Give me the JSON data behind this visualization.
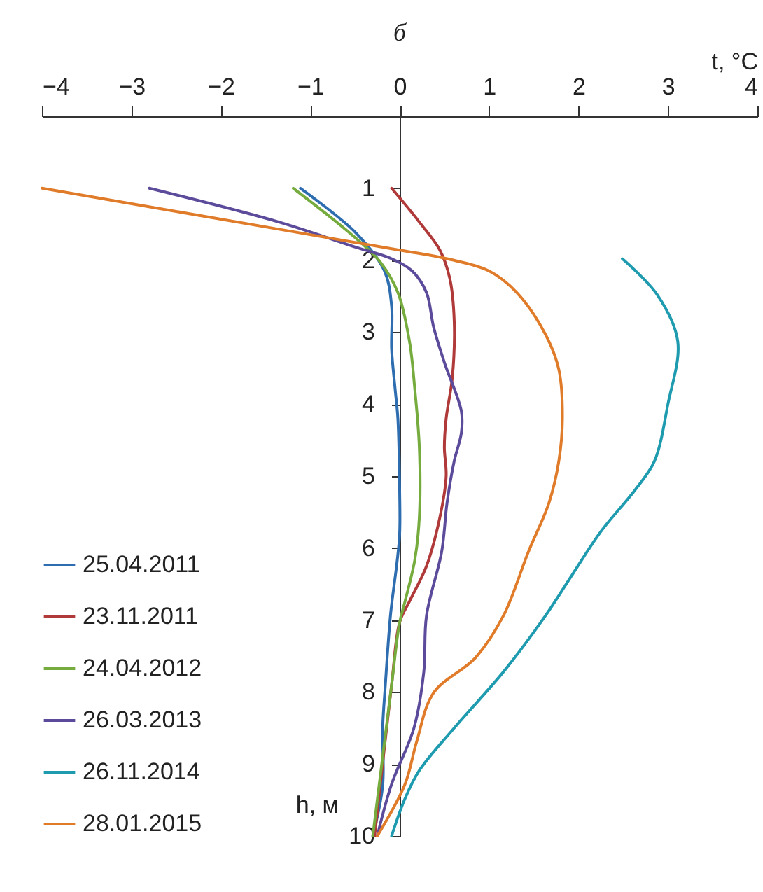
{
  "chart_data": {
    "type": "line",
    "title": "б",
    "xlabel": "t, °C",
    "ylabel": "h, м",
    "xlim": [
      -4,
      4
    ],
    "xticks": [
      -4,
      -3,
      -2,
      -1,
      0,
      1,
      2,
      3,
      4
    ],
    "ylim": [
      10,
      0
    ],
    "yticks": [
      1,
      2,
      3,
      4,
      5,
      6,
      7,
      8,
      9,
      10
    ],
    "grid": false,
    "legend": "bottom left",
    "series": [
      {
        "name": "25.04.2011",
        "color": "#2e6db0",
        "x": [
          -1.11,
          -0.49,
          -0.17,
          -0.09,
          -0.09,
          -0.05,
          -0.02,
          0,
          0,
          -0.03,
          -0.1,
          -0.16,
          -0.19,
          -0.19,
          -0.3
        ],
        "values": [
          1,
          1.62,
          2.15,
          2.64,
          3.23,
          3.8,
          4.2,
          5.2,
          5.8,
          6.2,
          6.9,
          7.9,
          8.5,
          9.3,
          10
        ]
      },
      {
        "name": "23.11.2011",
        "color": "#b03a3a",
        "x": [
          -0.09,
          0.22,
          0.45,
          0.56,
          0.61,
          0.59,
          0.52,
          0.5,
          0.52,
          0.45,
          0.3,
          0.11,
          0,
          -0.09,
          -0.28
        ],
        "values": [
          1,
          1.47,
          1.86,
          2.25,
          2.84,
          3.62,
          4.2,
          4.6,
          5,
          5.57,
          6.25,
          6.74,
          7.03,
          7.9,
          10
        ]
      },
      {
        "name": "24.04.2012",
        "color": "#76ab3e",
        "x": [
          -1.19,
          -0.56,
          -0.22,
          -0.02,
          0.11,
          0.17,
          0.22,
          0.22,
          0.17,
          0.06,
          0,
          -0.09,
          -0.19,
          -0.3
        ],
        "values": [
          1,
          1.62,
          2.02,
          2.45,
          3.13,
          3.8,
          4.6,
          5.57,
          6.16,
          6.74,
          7.03,
          7.9,
          8.9,
          10
        ]
      },
      {
        "name": "26.03.2013",
        "color": "#5c4a9a",
        "x": [
          -2.8,
          -1.35,
          -0.49,
          -0.09,
          0.14,
          0.3,
          0.38,
          0.5,
          0.69,
          0.69,
          0.61,
          0.53,
          0.47,
          0.3,
          0.27,
          0.16,
          -0.09,
          -0.25
        ],
        "values": [
          1,
          1.47,
          1.82,
          1.98,
          2.15,
          2.45,
          2.93,
          3.42,
          4.1,
          4.4,
          4.79,
          5.37,
          6.05,
          6.94,
          7.72,
          8.5,
          9.28,
          10
        ]
      },
      {
        "name": "26.11.2014",
        "color": "#1f9bb0",
        "x": [
          2.49,
          2.88,
          3.11,
          3.0,
          2.85,
          2.64,
          2.25,
          1.94,
          1.63,
          1.16,
          0.61,
          0.22,
          0.06,
          -0.09
        ],
        "values": [
          1.98,
          2.48,
          3.13,
          4.0,
          4.79,
          5.18,
          5.77,
          6.35,
          6.94,
          7.72,
          8.5,
          9.09,
          9.48,
          10
        ]
      },
      {
        "name": "28.01.2015",
        "color": "#e07b2a",
        "x": [
          -4,
          -1.35,
          0,
          0.53,
          1,
          1.31,
          1.63,
          1.78,
          1.82,
          1.78,
          1.67,
          1.44,
          1.16,
          0.85,
          0.38,
          0.19,
          0.06,
          -0.25
        ],
        "values": [
          1,
          1.57,
          1.86,
          1.98,
          2.15,
          2.45,
          3.03,
          3.52,
          4.2,
          4.79,
          5.37,
          6.05,
          6.94,
          7.52,
          8.01,
          8.69,
          9.28,
          10
        ]
      }
    ]
  }
}
